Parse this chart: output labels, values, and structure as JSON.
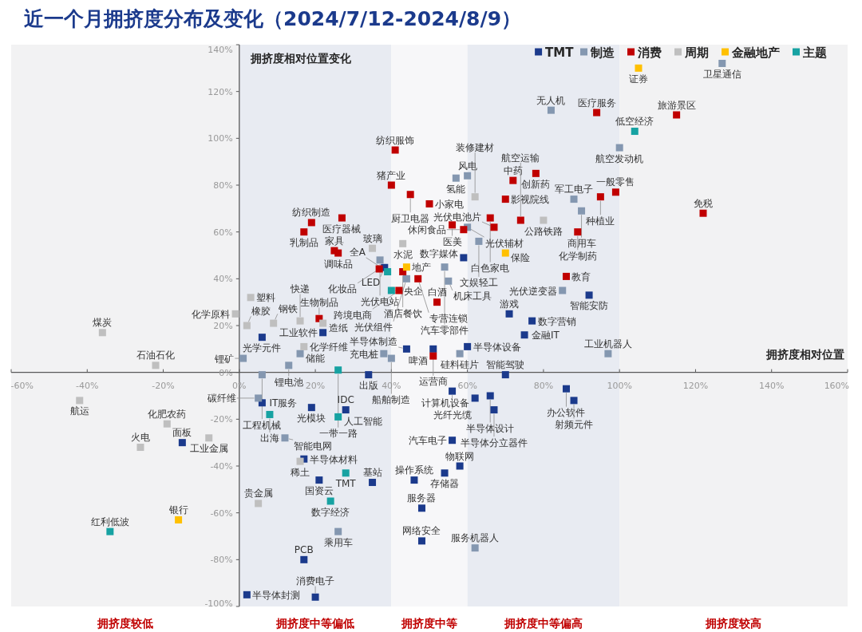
{
  "chart_data": {
    "type": "scatter",
    "title": "近一个月拥挤度分布及变化（2024/7/12-2024/8/9）",
    "xlabel": "拥挤度相对位置",
    "ylabel": "拥挤度相对位置变化",
    "marker": "square",
    "legend": "top right",
    "xlim": [
      -60,
      160
    ],
    "ylim": [
      -100,
      140
    ],
    "xticks": [
      {
        "value": -60,
        "label": "-60%"
      },
      {
        "value": -40,
        "label": "-40%"
      },
      {
        "value": -20,
        "label": "-20%"
      },
      {
        "value": 0,
        "label": "0%"
      },
      {
        "value": 20,
        "label": "20%"
      },
      {
        "value": 40,
        "label": "40%"
      },
      {
        "value": 60,
        "label": "60%"
      },
      {
        "value": 80,
        "label": "80%"
      },
      {
        "value": 100,
        "label": "100%"
      },
      {
        "value": 120,
        "label": "120%"
      },
      {
        "value": 140,
        "label": "140%"
      },
      {
        "value": 160,
        "label": "160%"
      }
    ],
    "yticks": [
      {
        "value": -100,
        "label": "-100%"
      },
      {
        "value": -80,
        "label": "-80%"
      },
      {
        "value": -60,
        "label": "-60%"
      },
      {
        "value": -40,
        "label": "-40%"
      },
      {
        "value": -20,
        "label": "-20%"
      },
      {
        "value": 0,
        "label": "0%"
      },
      {
        "value": 20,
        "label": "20%"
      },
      {
        "value": 40,
        "label": "40%"
      },
      {
        "value": 60,
        "label": "60%"
      },
      {
        "value": 80,
        "label": "80%"
      },
      {
        "value": 100,
        "label": "100%"
      },
      {
        "value": 120,
        "label": "120%"
      },
      {
        "value": 140,
        "label": "140%"
      }
    ],
    "bands": [
      {
        "axis": "x",
        "from": -60,
        "to": 0,
        "label": "拥挤度较低",
        "color": "#f2f2f3"
      },
      {
        "axis": "x",
        "from": 0,
        "to": 40,
        "label": "拥挤度中等偏低",
        "color": "#e8ebf2"
      },
      {
        "axis": "x",
        "from": 40,
        "to": 60,
        "label": "拥挤度中等",
        "color": "#f7f7f9"
      },
      {
        "axis": "x",
        "from": 60,
        "to": 100,
        "label": "拥挤度中等偏高",
        "color": "#e8ebf2"
      },
      {
        "axis": "x",
        "from": 100,
        "to": 160,
        "label": "拥挤度较高",
        "color": "#f2f2f3"
      }
    ],
    "series": [
      {
        "name": "TMT",
        "color": "#1b3a8c",
        "x": [
          6,
          38.2,
          59,
          71,
          77,
          75,
          92,
          22,
          34,
          44,
          51,
          60,
          70,
          86,
          88,
          56,
          62,
          66,
          67,
          56,
          58,
          54,
          46,
          48,
          48,
          19,
          28,
          17,
          21,
          35,
          17,
          20,
          -15,
          2,
          6
        ],
        "values": [
          15,
          44.8,
          49,
          25,
          22,
          16,
          33,
          17,
          -1,
          10,
          10,
          11,
          -1,
          -7,
          -12,
          -8,
          -11,
          -10,
          -16,
          -29,
          -40,
          -43,
          -46,
          -58,
          -72,
          -15,
          -16,
          -37,
          -46,
          -47,
          -80,
          -96,
          -30,
          -95,
          -13
        ]
      },
      {
        "name": "制造",
        "color": "#8497b0",
        "x": [
          82,
          57,
          60,
          88,
          90,
          60,
          63,
          37,
          44,
          54,
          55,
          85,
          97,
          100,
          127,
          16,
          13,
          38,
          40,
          58,
          62,
          12,
          26,
          1,
          6,
          5
        ],
        "values": [
          112,
          83,
          84,
          74,
          69,
          62,
          56,
          48,
          40,
          45,
          39,
          35,
          8,
          96,
          132,
          8,
          3,
          8,
          6,
          8,
          -75,
          -28,
          -68,
          6,
          -1,
          -11
        ]
      },
      {
        "name": "消费",
        "color": "#c00000",
        "x": [
          41,
          72,
          78,
          40,
          45,
          50,
          70,
          27,
          19,
          17,
          66,
          67,
          56,
          59,
          74,
          89,
          99,
          95,
          122,
          94,
          115,
          86,
          25,
          26,
          36.8,
          43,
          47,
          42,
          52,
          21,
          51
        ],
        "values": [
          95,
          82,
          85,
          80,
          76,
          72,
          74,
          66,
          64,
          60,
          66,
          62,
          63,
          61,
          65,
          60,
          77,
          75,
          68,
          111,
          110,
          41,
          52,
          51,
          44.2,
          43,
          40,
          35,
          30,
          23,
          7
        ]
      },
      {
        "name": "周期",
        "color": "#bfbfbf",
        "x": [
          62,
          80,
          43,
          35,
          3,
          -1,
          2,
          9,
          -36,
          16,
          22,
          17,
          -22,
          -42,
          -19,
          -8,
          -26,
          16,
          5
        ],
        "values": [
          75,
          65,
          55,
          53,
          32,
          25,
          20,
          21,
          17,
          22,
          21,
          11,
          3,
          -12,
          -22,
          -28,
          -32,
          -38,
          -56
        ]
      },
      {
        "name": "金融地产",
        "color": "#ffc000",
        "x": [
          105,
          70,
          44,
          -16
        ],
        "values": [
          130,
          51,
          45,
          -63
        ]
      },
      {
        "name": "主题",
        "color": "#17a2a2",
        "x": [
          104,
          39,
          40,
          26,
          26,
          8,
          28,
          24,
          -34
        ],
        "values": [
          103,
          43,
          35,
          1,
          -19,
          -18,
          -43,
          -55,
          -68
        ]
      }
    ],
    "annotations": [
      {
        "text": "纺织服饰",
        "x": 41,
        "y": 95
      },
      {
        "text": "氢能",
        "x": 57,
        "y": 83
      },
      {
        "text": "风电",
        "x": 60,
        "y": 84
      },
      {
        "text": "中药",
        "x": 72,
        "y": 82
      },
      {
        "text": "创新药",
        "x": 78,
        "y": 85
      },
      {
        "text": "无人机",
        "x": 82,
        "y": 112
      },
      {
        "text": "医疗服务",
        "x": 94,
        "y": 111
      },
      {
        "text": "证券",
        "x": 105,
        "y": 130
      },
      {
        "text": "卫星通信",
        "x": 127,
        "y": 132
      },
      {
        "text": "低空经济",
        "x": 104,
        "y": 103
      },
      {
        "text": "旅游景区",
        "x": 115,
        "y": 110
      },
      {
        "text": "航空发动机",
        "x": 100,
        "y": 96
      },
      {
        "text": "猪产业",
        "x": 40,
        "y": 80
      },
      {
        "text": "厨卫电器",
        "x": 45,
        "y": 76
      },
      {
        "text": "小家电",
        "x": 50,
        "y": 72
      },
      {
        "text": "装修建材",
        "x": 62,
        "y": 75
      },
      {
        "text": "影视院线",
        "x": 70,
        "y": 74
      },
      {
        "text": "军工电子",
        "x": 88,
        "y": 74
      },
      {
        "text": "一般零售",
        "x": 99,
        "y": 77
      },
      {
        "text": "种植业",
        "x": 95,
        "y": 75
      },
      {
        "text": "免税",
        "x": 122,
        "y": 68
      },
      {
        "text": "商用车",
        "x": 90,
        "y": 69
      },
      {
        "text": "公路铁路",
        "x": 80,
        "y": 65
      },
      {
        "text": "纺织制造",
        "x": 19,
        "y": 64
      },
      {
        "text": "医疗器械",
        "x": 27,
        "y": 66
      },
      {
        "text": "乳制品",
        "x": 17,
        "y": 60
      },
      {
        "text": "白色家电",
        "x": 66,
        "y": 66
      },
      {
        "text": "医美",
        "x": 56,
        "y": 63
      },
      {
        "text": "光伏辅材",
        "x": 60,
        "y": 62
      },
      {
        "text": "休闲食品",
        "x": 59,
        "y": 61
      },
      {
        "text": "航空运输",
        "x": 74,
        "y": 65
      },
      {
        "text": "化学制药",
        "x": 89,
        "y": 60
      },
      {
        "text": "水泥",
        "x": 43,
        "y": 55
      },
      {
        "text": "家具",
        "x": 25,
        "y": 52
      },
      {
        "text": "玻璃",
        "x": 35,
        "y": 53
      },
      {
        "text": "数字媒体",
        "x": 59,
        "y": 49
      },
      {
        "text": "文娱轻工",
        "x": 63,
        "y": 56
      },
      {
        "text": "调味品",
        "x": 26,
        "y": 51
      },
      {
        "text": "光伏电站",
        "x": 37,
        "y": 48
      },
      {
        "text": "LED",
        "x": 38.2,
        "y": 44.8
      },
      {
        "text": "地产",
        "x": 44,
        "y": 45
      },
      {
        "text": "酒店餐饮",
        "x": 43,
        "y": 43
      },
      {
        "text": "光伏电池片",
        "x": 67,
        "y": 62
      },
      {
        "text": "化妆品",
        "x": 36.8,
        "y": 44.2
      },
      {
        "text": "汽车零部件",
        "x": 54,
        "y": 45
      },
      {
        "text": "保险",
        "x": 70,
        "y": 51
      },
      {
        "text": "教育",
        "x": 86,
        "y": 41
      },
      {
        "text": "专营连锁",
        "x": 47,
        "y": 40
      },
      {
        "text": "全A",
        "x": 39,
        "y": 43
      },
      {
        "text": "光伏组件",
        "x": 44,
        "y": 40
      },
      {
        "text": "机床工具",
        "x": 55,
        "y": 39
      },
      {
        "text": "智能安防",
        "x": 92,
        "y": 33
      },
      {
        "text": "塑料",
        "x": 3,
        "y": 32
      },
      {
        "text": "央企",
        "x": 40,
        "y": 35
      },
      {
        "text": "跨境电商",
        "x": 42,
        "y": 35
      },
      {
        "text": "光伏逆变器",
        "x": 85,
        "y": 35
      },
      {
        "text": "白酒",
        "x": 52,
        "y": 30
      },
      {
        "text": "游戏",
        "x": 71,
        "y": 25
      },
      {
        "text": "化学原料",
        "x": -1,
        "y": 25
      },
      {
        "text": "橡胶",
        "x": 2,
        "y": 20
      },
      {
        "text": "钢铁",
        "x": 9,
        "y": 21
      },
      {
        "text": "生物制品",
        "x": 21,
        "y": 23
      },
      {
        "text": "工业软件",
        "x": 22,
        "y": 17
      },
      {
        "text": "数字营销",
        "x": 77,
        "y": 22
      },
      {
        "text": "煤炭",
        "x": -36,
        "y": 17
      },
      {
        "text": "光学元件",
        "x": 6,
        "y": 15
      },
      {
        "text": "快递",
        "x": 16,
        "y": 22
      },
      {
        "text": "造纸",
        "x": 22,
        "y": 21
      },
      {
        "text": "半导体制造",
        "x": 44,
        "y": 10
      },
      {
        "text": "运营商",
        "x": 51,
        "y": 10
      },
      {
        "text": "半导体设备",
        "x": 60,
        "y": 11
      },
      {
        "text": "金融IT",
        "x": 75,
        "y": 16
      },
      {
        "text": "工业机器人",
        "x": 97,
        "y": 8
      },
      {
        "text": "石油石化",
        "x": -22,
        "y": 3
      },
      {
        "text": "储能",
        "x": 16,
        "y": 8
      },
      {
        "text": "化学纤维",
        "x": 17,
        "y": 11
      },
      {
        "text": "锂矿",
        "x": 1,
        "y": 6
      },
      {
        "text": "充电桩",
        "x": 38,
        "y": 8
      },
      {
        "text": "啤酒",
        "x": 51,
        "y": 7
      },
      {
        "text": "硅料硅片",
        "x": 58,
        "y": 8
      },
      {
        "text": "船舶制造",
        "x": 40,
        "y": 6
      },
      {
        "text": "锂电池",
        "x": 13,
        "y": 3
      },
      {
        "text": "一带一路",
        "x": 26,
        "y": 1
      },
      {
        "text": "出版",
        "x": 34,
        "y": -1
      },
      {
        "text": "智能驾驶",
        "x": 70,
        "y": -1
      },
      {
        "text": "工程机械",
        "x": 6,
        "y": -1
      },
      {
        "text": "办公软件",
        "x": 86,
        "y": -7
      },
      {
        "text": "航运",
        "x": -42,
        "y": -12
      },
      {
        "text": "光纤光缆",
        "x": 56,
        "y": -8
      },
      {
        "text": "半导体设计",
        "x": 66,
        "y": -10
      },
      {
        "text": "IDC",
        "x": 28,
        "y": -16
      },
      {
        "text": "IT服务",
        "x": 6,
        "y": -13
      },
      {
        "text": "碳纤维",
        "x": 5,
        "y": -11
      },
      {
        "text": "计算机设备",
        "x": 62,
        "y": -11
      },
      {
        "text": "射频元件",
        "x": 88,
        "y": -12
      },
      {
        "text": "光模块",
        "x": 19,
        "y": -15
      },
      {
        "text": "化肥农药",
        "x": -19,
        "y": -22
      },
      {
        "text": "半导体分立器件",
        "x": 67,
        "y": -16
      },
      {
        "text": "出海",
        "x": 8,
        "y": -18
      },
      {
        "text": "人工智能",
        "x": 26,
        "y": -19
      },
      {
        "text": "工业金属",
        "x": -8,
        "y": -28
      },
      {
        "text": "面板",
        "x": -15,
        "y": -30
      },
      {
        "text": "火电",
        "x": -26,
        "y": -32
      },
      {
        "text": "智能电网",
        "x": 12,
        "y": -28
      },
      {
        "text": "半导体材料",
        "x": 17,
        "y": -37
      },
      {
        "text": "汽车电子",
        "x": 56,
        "y": -29
      },
      {
        "text": "存储器",
        "x": 54,
        "y": -43
      },
      {
        "text": "物联网",
        "x": 58,
        "y": -40
      },
      {
        "text": "TMT",
        "x": 28,
        "y": -43
      },
      {
        "text": "稀土",
        "x": 16,
        "y": -38
      },
      {
        "text": "国资云",
        "x": 21,
        "y": -46
      },
      {
        "text": "操作系统",
        "x": 46,
        "y": -46
      },
      {
        "text": "基站",
        "x": 35,
        "y": -47
      },
      {
        "text": "贵金属",
        "x": 5,
        "y": -56
      },
      {
        "text": "数字经济",
        "x": 24,
        "y": -55
      },
      {
        "text": "服务器",
        "x": 48,
        "y": -58
      },
      {
        "text": "乘用车",
        "x": 26,
        "y": -68
      },
      {
        "text": "银行",
        "x": -16,
        "y": -63
      },
      {
        "text": "红利低波",
        "x": -34,
        "y": -68
      },
      {
        "text": "网络安全",
        "x": 48,
        "y": -72
      },
      {
        "text": "服务机器人",
        "x": 62,
        "y": -75
      },
      {
        "text": "PCB",
        "x": 17,
        "y": -80
      },
      {
        "text": "半导体封测",
        "x": 2,
        "y": -95
      },
      {
        "text": "消费电子",
        "x": 20,
        "y": -96
      }
    ]
  }
}
